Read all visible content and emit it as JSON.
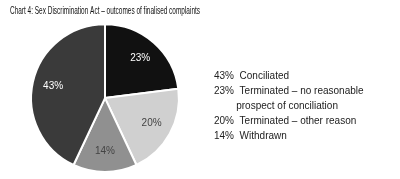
{
  "chart_data": {
    "type": "pie",
    "title": "Chart 4: Sex Discrimination Act – outcomes of finalised complaints",
    "values": [
      23,
      20,
      14,
      43
    ],
    "value_labels": [
      "23%",
      "20%",
      "14%",
      "43%"
    ],
    "data_labels": true,
    "colors": [
      "#111111",
      "#d0d0d0",
      "#909090",
      "#3a3a3a"
    ],
    "annotations": [
      "43%  Conciliated",
      "23%  Terminated – no reasonable",
      "        prospect of conciliation",
      "20%  Terminated – other reason",
      "14%  Withdrawn"
    ],
    "legend": false
  }
}
